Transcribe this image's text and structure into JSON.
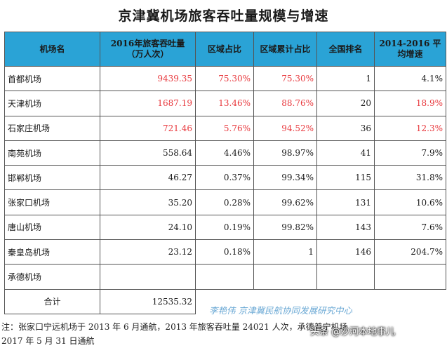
{
  "title": "京津冀机场旅客吞吐量规模与增速",
  "headers": [
    "机场名",
    "2016年旅客吞吐量 （万人次）",
    "区域占比",
    "区域累计占比",
    "全国排名",
    "2014-2016 平均增速"
  ],
  "rows": [
    {
      "name": "首都机场",
      "throughput": "9439.35",
      "share": "75.30%",
      "cum_share": "75.30%",
      "rank": "1",
      "growth": "4.1%"
    },
    {
      "name": "天津机场",
      "throughput": "1687.19",
      "share": "13.46%",
      "cum_share": "88.76%",
      "rank": "20",
      "growth": "18.9%"
    },
    {
      "name": "石家庄机场",
      "throughput": "721.46",
      "share": "5.76%",
      "cum_share": "94.52%",
      "rank": "36",
      "growth": "12.3%"
    },
    {
      "name": "南苑机场",
      "throughput": "558.64",
      "share": "4.46%",
      "cum_share": "98.97%",
      "rank": "41",
      "growth": "7.9%"
    },
    {
      "name": "邯郸机场",
      "throughput": "46.27",
      "share": "0.37%",
      "cum_share": "99.34%",
      "rank": "115",
      "growth": "31.8%"
    },
    {
      "name": "张家口机场",
      "throughput": "35.20",
      "share": "0.28%",
      "cum_share": "99.62%",
      "rank": "131",
      "growth": "10.6%"
    },
    {
      "name": "唐山机场",
      "throughput": "24.10",
      "share": "0.19%",
      "cum_share": "99.82%",
      "rank": "143",
      "growth": "7.6%"
    },
    {
      "name": "秦皇岛机场",
      "throughput": "23.12",
      "share": "0.18%",
      "cum_share": "1",
      "rank": "146",
      "growth": "204.7%"
    },
    {
      "name": "承德机场",
      "throughput": "",
      "share": "",
      "cum_share": "",
      "rank": "",
      "growth": ""
    }
  ],
  "total": {
    "label": "合计",
    "value": "12535.32"
  },
  "watermark": "李艳伟 京津冀民航协同发展研究中心",
  "note_line1": "注：张家口宁远机场于 2013 年 6 月通航，2013 年旅客吞吐量 24021 人次，承德普宁机场",
  "note_line2": "2017 年 5 月 31 日通航",
  "overlay": "头条 @沙河本地事儿",
  "colors": {
    "header_bg": "#2aa3d6",
    "highlight": "#e8383d"
  }
}
